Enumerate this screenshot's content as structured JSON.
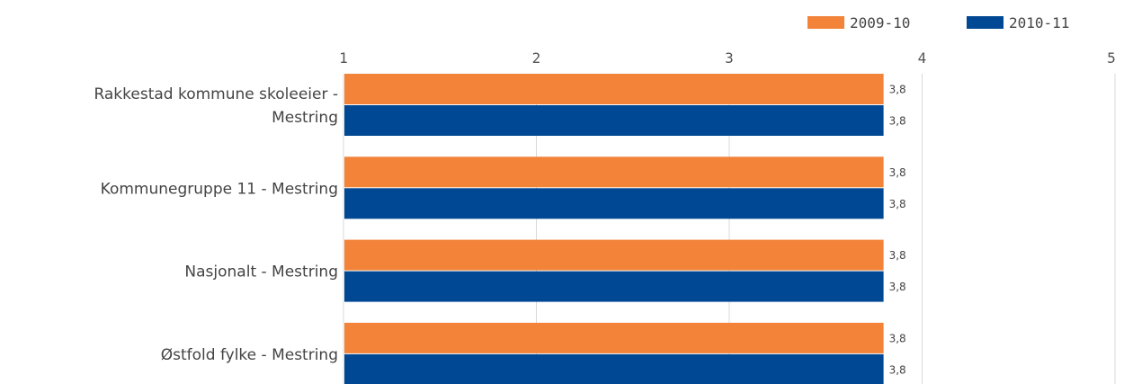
{
  "colors": {
    "series_2009": "#f28339",
    "series_2010": "#004893",
    "grid": "#d9d9d9",
    "text": "#444444"
  },
  "chart_data": {
    "type": "bar",
    "orientation": "horizontal",
    "title": "",
    "xlabel": "",
    "ylabel": "",
    "xlim": [
      1,
      5
    ],
    "ticks": [
      "1",
      "2",
      "3",
      "4",
      "5"
    ],
    "grid": true,
    "legend_position": "top-right",
    "categories": [
      [
        "Rakkestad kommune skoleeier -",
        "Mestring"
      ],
      [
        "Kommunegruppe 11 - Mestring"
      ],
      [
        "Nasjonalt - Mestring"
      ],
      [
        "Østfold fylke - Mestring"
      ]
    ],
    "series": [
      {
        "name": "2009-10",
        "values": [
          3.8,
          3.8,
          3.8,
          3.8
        ],
        "labels": [
          "3,8",
          "3,8",
          "3,8",
          "3,8"
        ]
      },
      {
        "name": "2010-11",
        "values": [
          3.8,
          3.8,
          3.8,
          3.8
        ],
        "labels": [
          "3,8",
          "3,8",
          "3,8",
          "3,8"
        ]
      }
    ]
  }
}
